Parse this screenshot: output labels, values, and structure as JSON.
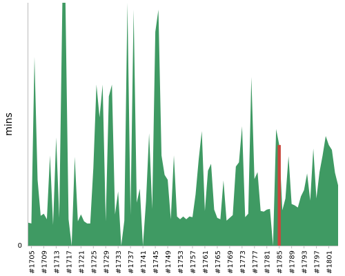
{
  "chart_data": {
    "type": "area",
    "title": "",
    "xlabel": "",
    "ylabel": "mins",
    "grid": false,
    "legend": "none",
    "colors": {
      "series": "#3f9a63",
      "highlight": "#c9473c",
      "axis": "#bbbbbb"
    },
    "x_tick_labels": [
      "#1705",
      "#1709",
      "#1713",
      "#1717",
      "#1721",
      "#1725",
      "#1729",
      "#1733",
      "#1737",
      "#1741",
      "#1745",
      "#1749",
      "#1753",
      "#1757",
      "#1761",
      "#1765",
      "#1769",
      "#1773",
      "#1777",
      "#1781",
      "#1785",
      "#1789",
      "#1793",
      "#1797",
      "#1801"
    ],
    "y_tick_labels": [
      "0"
    ],
    "ylim": [
      0,
      350
    ],
    "x_start": 1704,
    "x_end": 1804,
    "highlight_x": [
      1785
    ],
    "series": [
      {
        "x": [
          1704,
          1705,
          1706,
          1707,
          1708,
          1709,
          1710,
          1711,
          1712,
          1713,
          1714,
          1715,
          1716,
          1717,
          1718,
          1719,
          1720,
          1721,
          1722,
          1723,
          1724,
          1725,
          1726,
          1727,
          1728,
          1729,
          1730,
          1731,
          1732,
          1733,
          1734,
          1735,
          1736,
          1737,
          1738,
          1739,
          1740,
          1741,
          1742,
          1743,
          1744,
          1745,
          1746,
          1747,
          1748,
          1749,
          1750,
          1751,
          1752,
          1753,
          1754,
          1755,
          1756,
          1757,
          1758,
          1759,
          1760,
          1761,
          1762,
          1763,
          1764,
          1765,
          1766,
          1767,
          1768,
          1769,
          1770,
          1771,
          1772,
          1773,
          1774,
          1775,
          1776,
          1777,
          1778,
          1779,
          1780,
          1781,
          1782,
          1783,
          1784,
          1785,
          1786,
          1787,
          1788,
          1789,
          1790,
          1791,
          1792,
          1793,
          1794,
          1795,
          1796,
          1797,
          1798,
          1799,
          1800,
          1801,
          1802,
          1803,
          1804
        ],
        "values": [
          33,
          32,
          272,
          95,
          43,
          46,
          38,
          130,
          30,
          156,
          40,
          350,
          350,
          38,
          0,
          128,
          35,
          45,
          35,
          32,
          32,
          112,
          232,
          185,
          232,
          35,
          215,
          232,
          45,
          78,
          0,
          36,
          350,
          44,
          340,
          62,
          82,
          0,
          64,
          162,
          53,
          308,
          340,
          130,
          102,
          95,
          38,
          130,
          42,
          38,
          42,
          38,
          42,
          41,
          74,
          124,
          165,
          50,
          108,
          118,
          52,
          40,
          38,
          94,
          36,
          40,
          44,
          114,
          120,
          172,
          41,
          46,
          243,
          96,
          106,
          50,
          49,
          52,
          53,
          0,
          168,
          145,
          51,
          68,
          129,
          60,
          58,
          55,
          71,
          80,
          104,
          65,
          140,
          68,
          106,
          130,
          158,
          145,
          138,
          105,
          87
        ]
      }
    ]
  }
}
